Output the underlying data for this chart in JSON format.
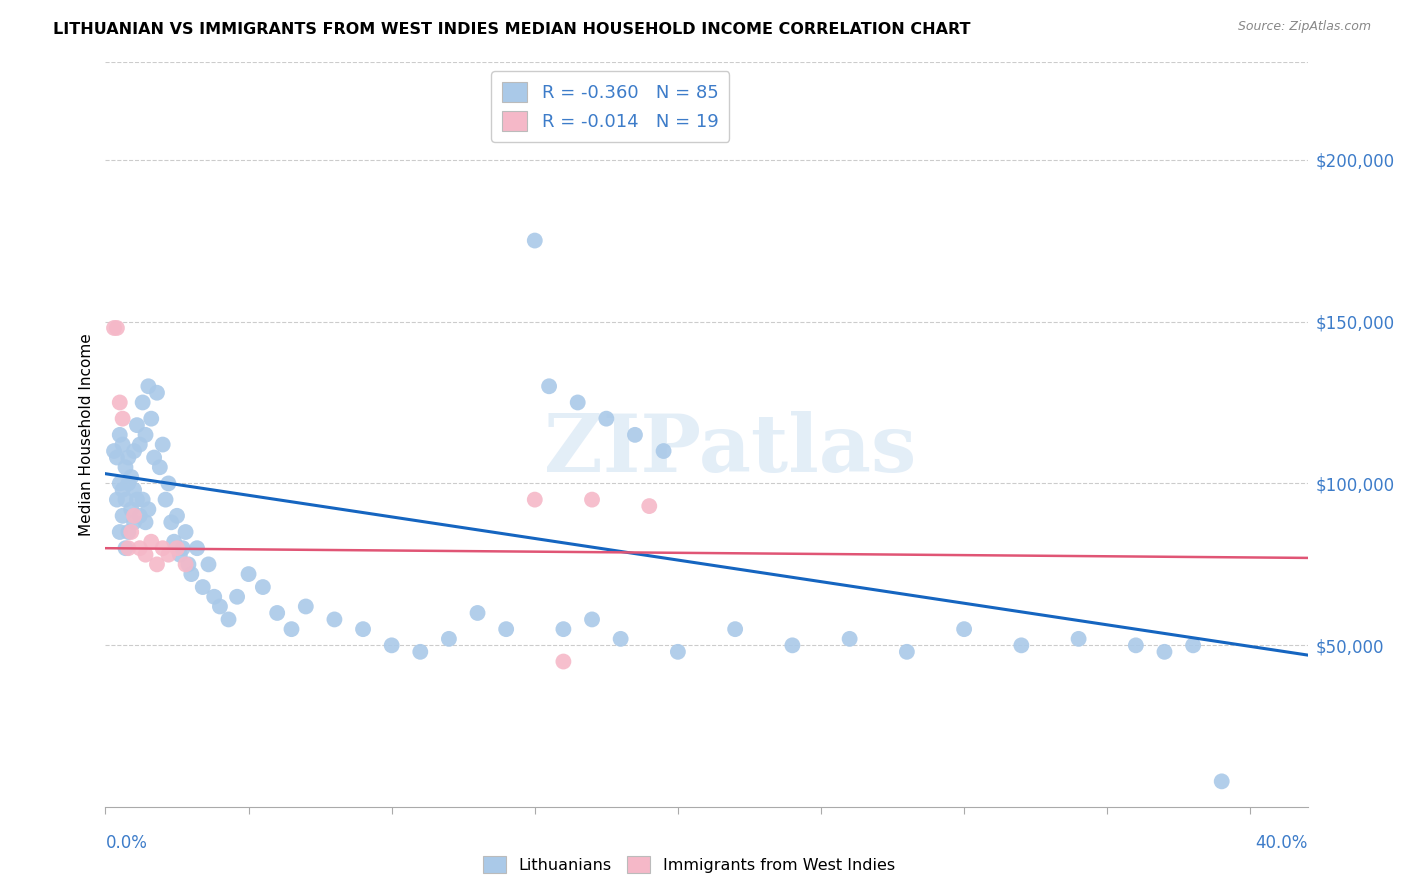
{
  "title": "LITHUANIAN VS IMMIGRANTS FROM WEST INDIES MEDIAN HOUSEHOLD INCOME CORRELATION CHART",
  "source": "Source: ZipAtlas.com",
  "ylabel": "Median Household Income",
  "legend_blue_label": "R = -0.360   N = 85",
  "legend_pink_label": "R = -0.014   N = 19",
  "legend_label1": "Lithuanians",
  "legend_label2": "Immigrants from West Indies",
  "watermark": "ZIPatlas",
  "blue_color": "#aac9e8",
  "pink_color": "#f5b8c8",
  "blue_line_color": "#1565c0",
  "pink_line_color": "#e05575",
  "right_label_color": "#3d7cc9",
  "xlim": [
    0.0,
    0.42
  ],
  "ylim": [
    0,
    230000
  ],
  "ytick_labels": [
    "$50,000",
    "$100,000",
    "$150,000",
    "$200,000"
  ],
  "ytick_values": [
    50000,
    100000,
    150000,
    200000
  ],
  "blue_scatter_x": [
    0.003,
    0.004,
    0.004,
    0.005,
    0.005,
    0.005,
    0.006,
    0.006,
    0.006,
    0.007,
    0.007,
    0.007,
    0.008,
    0.008,
    0.008,
    0.009,
    0.009,
    0.01,
    0.01,
    0.01,
    0.011,
    0.011,
    0.012,
    0.012,
    0.013,
    0.013,
    0.014,
    0.014,
    0.015,
    0.015,
    0.016,
    0.017,
    0.018,
    0.019,
    0.02,
    0.021,
    0.022,
    0.023,
    0.024,
    0.025,
    0.026,
    0.027,
    0.028,
    0.029,
    0.03,
    0.032,
    0.034,
    0.036,
    0.038,
    0.04,
    0.043,
    0.046,
    0.05,
    0.055,
    0.06,
    0.065,
    0.07,
    0.08,
    0.09,
    0.1,
    0.11,
    0.12,
    0.13,
    0.14,
    0.15,
    0.16,
    0.17,
    0.18,
    0.2,
    0.22,
    0.24,
    0.26,
    0.28,
    0.3,
    0.32,
    0.34,
    0.36,
    0.37,
    0.38,
    0.39,
    0.155,
    0.165,
    0.175,
    0.185,
    0.195
  ],
  "blue_scatter_y": [
    110000,
    108000,
    95000,
    115000,
    100000,
    85000,
    112000,
    98000,
    90000,
    105000,
    95000,
    80000,
    108000,
    100000,
    85000,
    102000,
    92000,
    110000,
    98000,
    88000,
    118000,
    95000,
    112000,
    90000,
    125000,
    95000,
    115000,
    88000,
    130000,
    92000,
    120000,
    108000,
    128000,
    105000,
    112000,
    95000,
    100000,
    88000,
    82000,
    90000,
    78000,
    80000,
    85000,
    75000,
    72000,
    80000,
    68000,
    75000,
    65000,
    62000,
    58000,
    65000,
    72000,
    68000,
    60000,
    55000,
    62000,
    58000,
    55000,
    50000,
    48000,
    52000,
    60000,
    55000,
    175000,
    55000,
    58000,
    52000,
    48000,
    55000,
    50000,
    52000,
    48000,
    55000,
    50000,
    52000,
    50000,
    48000,
    50000,
    8000,
    130000,
    125000,
    120000,
    115000,
    110000
  ],
  "pink_scatter_x": [
    0.003,
    0.004,
    0.005,
    0.006,
    0.008,
    0.009,
    0.01,
    0.012,
    0.014,
    0.016,
    0.018,
    0.02,
    0.022,
    0.025,
    0.028,
    0.15,
    0.17,
    0.19,
    0.16
  ],
  "pink_scatter_y": [
    148000,
    148000,
    125000,
    120000,
    80000,
    85000,
    90000,
    80000,
    78000,
    82000,
    75000,
    80000,
    78000,
    80000,
    75000,
    95000,
    95000,
    93000,
    45000
  ],
  "blue_trend_x": [
    0.0,
    0.42
  ],
  "blue_trend_y": [
    103000,
    47000
  ],
  "pink_trend_x": [
    0.0,
    0.42
  ],
  "pink_trend_y": [
    80000,
    77000
  ]
}
